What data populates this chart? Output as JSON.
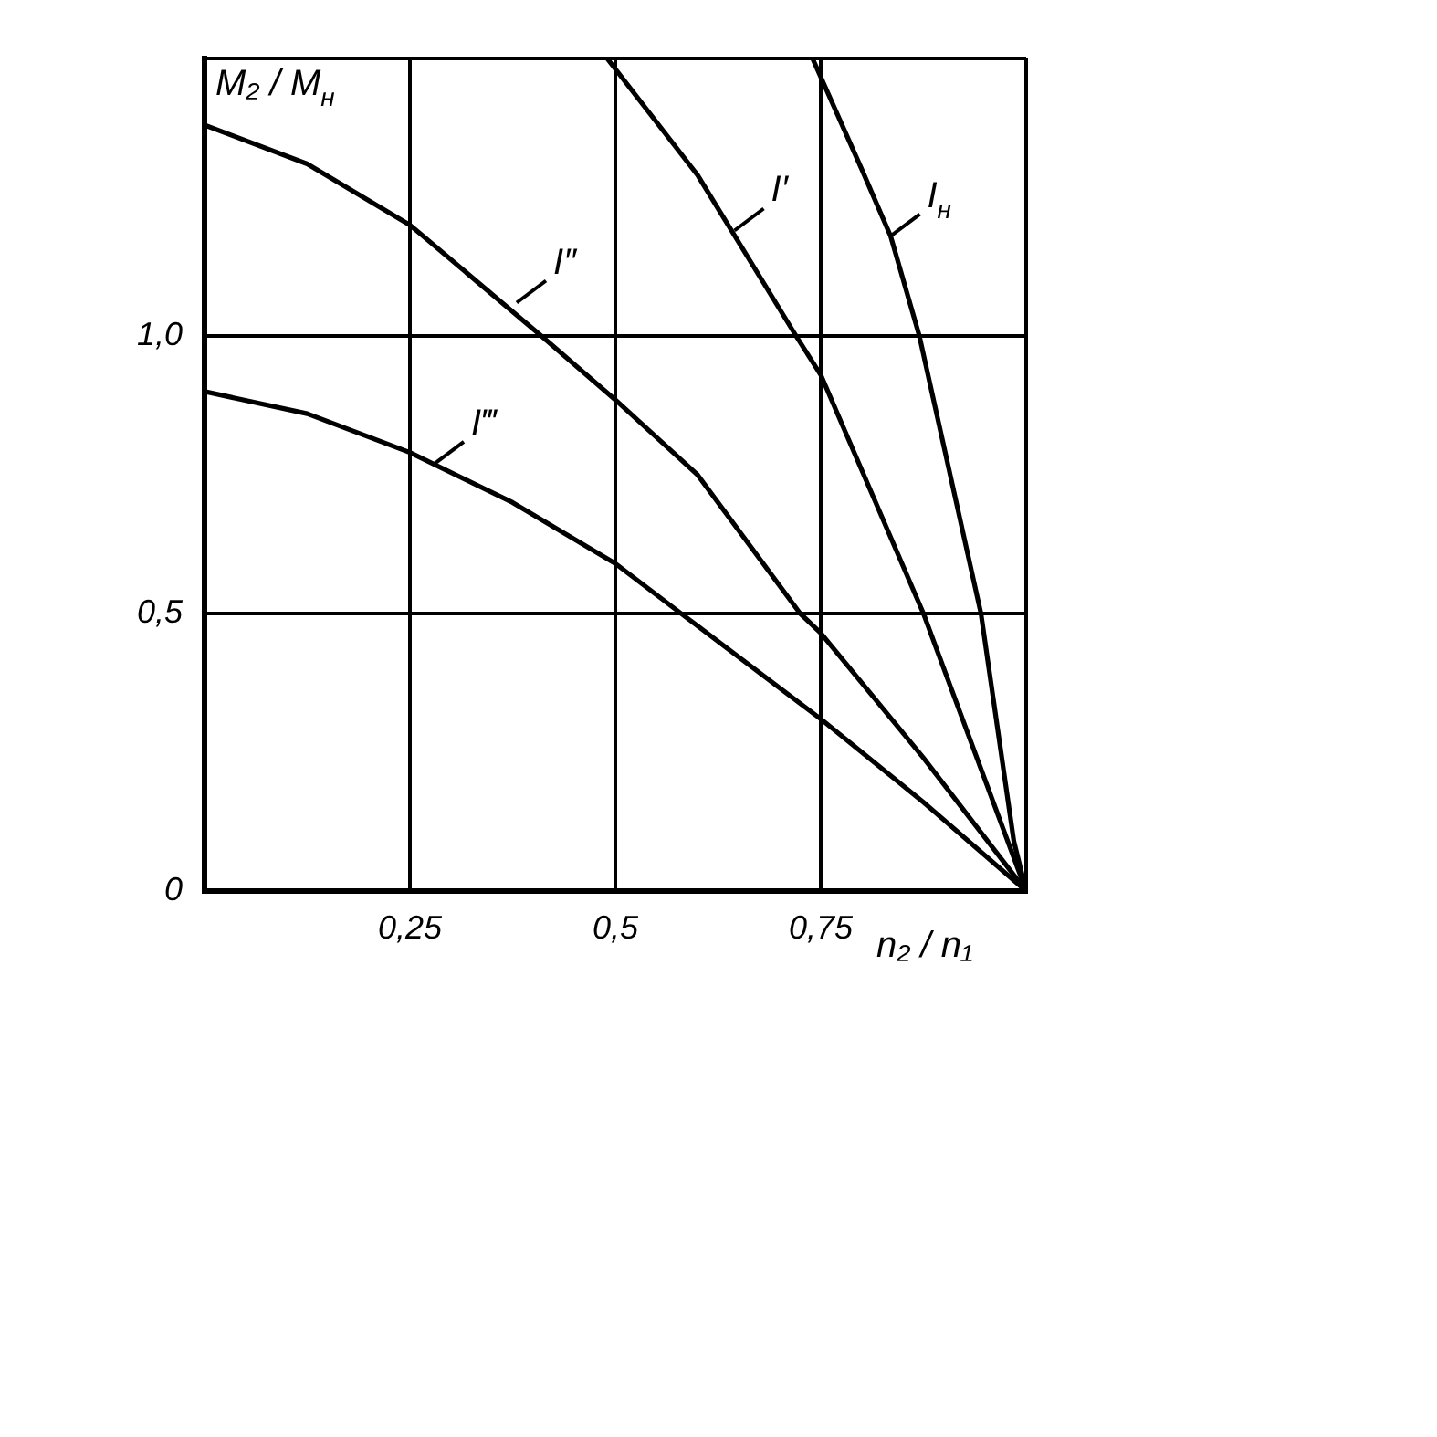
{
  "chart_data": {
    "type": "line",
    "xlabel": "n₂ / n₁",
    "ylabel": "M₂ / M$_{н}$",
    "xlim": [
      0,
      1
    ],
    "xticks": [
      {
        "value": 0.25,
        "label": "0,25"
      },
      {
        "value": 0.5,
        "label": "0,5"
      },
      {
        "value": 0.75,
        "label": "0,75"
      },
      {
        "value": 1,
        "label": null
      }
    ],
    "ylim": [
      0,
      1.5
    ],
    "yticks": [
      0,
      {
        "value": 0.5,
        "label": "0,5"
      },
      {
        "value": 1,
        "label": "1,0"
      },
      {
        "value": 1.5,
        "label": null
      }
    ],
    "grid": true,
    "legend": false,
    "marker": "none",
    "line_style": "solid",
    "series": [
      {
        "color": "#000000",
        "x": [
          0,
          0.125,
          0.25,
          0.41,
          0.5,
          0.6,
          0.725,
          0.75,
          0.875,
          1
        ],
        "values": [
          1.38,
          1.31,
          1.2,
          1.0,
          0.885,
          0.75,
          0.5,
          0.465,
          0.24,
          0
        ]
      },
      {
        "color": "#000000",
        "x": [
          0.49,
          0.6,
          0.72,
          0.75,
          0.875,
          1
        ],
        "values": [
          1.5,
          1.29,
          1.0,
          0.93,
          0.5,
          0
        ]
      },
      {
        "color": "#000000",
        "x": [
          0.74,
          0.8,
          0.835,
          0.87,
          0.945,
          0.985,
          1
        ],
        "values": [
          1.5,
          1.3,
          1.18,
          1.0,
          0.5,
          0.09,
          0
        ]
      },
      {
        "color": "#000000",
        "x": [
          0,
          0.125,
          0.25,
          0.375,
          0.5,
          0.58,
          0.75,
          0.875,
          1
        ],
        "values": [
          0.9,
          0.86,
          0.79,
          0.7,
          0.59,
          0.5,
          0.31,
          0.16,
          0
        ]
      }
    ],
    "annotations": [
      {
        "text": "I″",
        "x": 0.38,
        "y": 1.06
      },
      {
        "text": "I′",
        "x": 0.645,
        "y": 1.19
      },
      {
        "text": "I$_{н}$",
        "x": 0.835,
        "y": 1.18
      },
      {
        "text": "I‴",
        "x": 0.28,
        "y": 0.77
      }
    ]
  }
}
